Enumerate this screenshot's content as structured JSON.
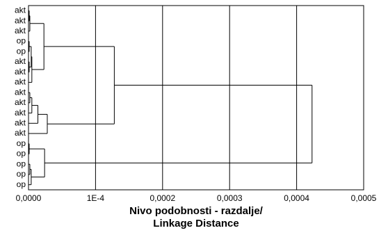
{
  "chart_data": {
    "type": "dendrogram",
    "orientation": "horizontal",
    "x_label": [
      "Nivo podobnosti - razdalje/",
      "Linkage Distance"
    ],
    "leaves": [
      "akt",
      "akt",
      "akt",
      "op",
      "op",
      "akt",
      "akt",
      "akt",
      "akt",
      "akt",
      "akt",
      "akt",
      "akt",
      "op",
      "op",
      "op",
      "op",
      "op"
    ],
    "merges": [
      {
        "left": 0,
        "right": 1,
        "height": 1e-06
      },
      {
        "left": 18,
        "right": 2,
        "height": 2e-06
      },
      {
        "left": 3,
        "right": 4,
        "height": 1e-06
      },
      {
        "left": 5,
        "right": 6,
        "height": 1e-06
      },
      {
        "left": 20,
        "right": 21,
        "height": 4e-06
      },
      {
        "left": 22,
        "right": 7,
        "height": 5e-06
      },
      {
        "left": 19,
        "right": 23,
        "height": 2.3e-05
      },
      {
        "left": 8,
        "right": 9,
        "height": 2e-06
      },
      {
        "left": 25,
        "right": 10,
        "height": 5e-06
      },
      {
        "left": 26,
        "right": 11,
        "height": 1.4e-05
      },
      {
        "left": 27,
        "right": 12,
        "height": 2.8e-05
      },
      {
        "left": 24,
        "right": 28,
        "height": 0.000128
      },
      {
        "left": 13,
        "right": 14,
        "height": 1e-06
      },
      {
        "left": 15,
        "right": 16,
        "height": 2e-06
      },
      {
        "left": 31,
        "right": 17,
        "height": 4e-06
      },
      {
        "left": 30,
        "right": 32,
        "height": 2.4e-05
      },
      {
        "left": 29,
        "right": 33,
        "height": 0.000423
      }
    ],
    "xlim": [
      0,
      0.0005
    ],
    "xticks": [
      {
        "value": 0,
        "label": "0,0000"
      },
      {
        "value": 0.0001,
        "label": "1E-4"
      },
      {
        "value": 0.0002,
        "label": "0,0002"
      },
      {
        "value": 0.0003,
        "label": "0,0003"
      },
      {
        "value": 0.0004,
        "label": "0,0004"
      },
      {
        "value": 0.0005,
        "label": "0,0005"
      }
    ],
    "grid": true,
    "color": "#000000"
  }
}
